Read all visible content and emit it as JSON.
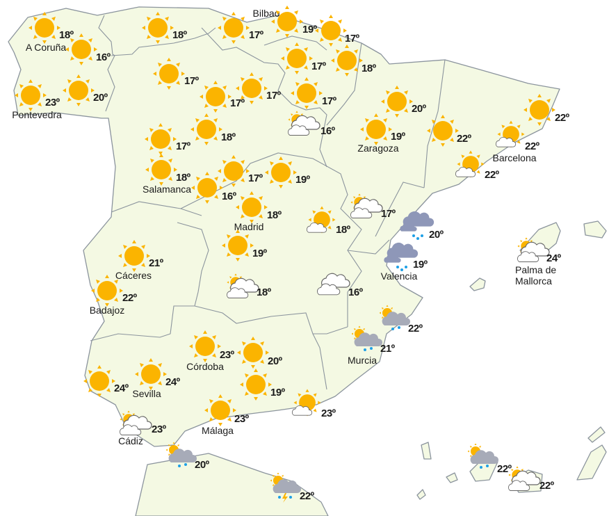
{
  "map": {
    "colors": {
      "land": "#f4f9e3",
      "border": "#8b949d",
      "sun": "#fbb400",
      "rain_cloud": "#8e97b8",
      "shower_cloud": "#a7abb8",
      "drop": "#1ea0e6"
    },
    "stations": [
      {
        "icon": "sun",
        "temp": "18º",
        "city": "A Coruña"
      },
      {
        "icon": "sun",
        "temp": "16º"
      },
      {
        "icon": "sun",
        "temp": "23º",
        "city": "Pontevedra"
      },
      {
        "icon": "sun",
        "temp": "20º"
      },
      {
        "icon": "sun",
        "temp": "18º"
      },
      {
        "icon": "sun",
        "temp": "17º",
        "city": "Bilbao"
      },
      {
        "icon": "sun",
        "temp": "19º"
      },
      {
        "icon": "sun",
        "temp": "17º"
      },
      {
        "icon": "sun",
        "temp": "17º"
      },
      {
        "icon": "sun",
        "temp": "18º"
      },
      {
        "icon": "sun",
        "temp": "17º"
      },
      {
        "icon": "sun",
        "temp": "17º"
      },
      {
        "icon": "sun",
        "temp": "17º"
      },
      {
        "icon": "sun",
        "temp": "17º"
      },
      {
        "icon": "sun-cloud",
        "temp": "16º"
      },
      {
        "icon": "sun",
        "temp": "20º"
      },
      {
        "icon": "sun",
        "temp": "19º",
        "city": "Zaragoza"
      },
      {
        "icon": "sun",
        "temp": "17º"
      },
      {
        "icon": "sun",
        "temp": "18º"
      },
      {
        "icon": "sun",
        "temp": "18º",
        "city": "Salamanca"
      },
      {
        "icon": "sun",
        "temp": "16º"
      },
      {
        "icon": "sun",
        "temp": "17º"
      },
      {
        "icon": "sun",
        "temp": "19º"
      },
      {
        "icon": "sun",
        "temp": "18º",
        "city": "Madrid"
      },
      {
        "icon": "sun-small-cloud",
        "temp": "18º"
      },
      {
        "icon": "sun-cloud",
        "temp": "17º"
      },
      {
        "icon": "rain",
        "temp": "20º"
      },
      {
        "icon": "rain",
        "temp": "19º",
        "city": "Valencia"
      },
      {
        "icon": "sun",
        "temp": "22º"
      },
      {
        "icon": "sun",
        "temp": "22º"
      },
      {
        "icon": "sun-small-cloud",
        "temp": "22º",
        "city": "Barcelona"
      },
      {
        "icon": "sun-small-cloud",
        "temp": "22º"
      },
      {
        "icon": "sun-cloud",
        "temp": "24º",
        "city": "Palma de Mallorca"
      },
      {
        "icon": "sun",
        "temp": "21º",
        "city": "Cáceres"
      },
      {
        "icon": "sun",
        "temp": "22º",
        "city": "Badajoz"
      },
      {
        "icon": "sun",
        "temp": "19º"
      },
      {
        "icon": "sun-cloud",
        "temp": "18º"
      },
      {
        "icon": "clouds",
        "temp": "16º"
      },
      {
        "icon": "sun-shower",
        "temp": "22º"
      },
      {
        "icon": "sun-shower",
        "temp": "21º",
        "city": "Murcia"
      },
      {
        "icon": "sun",
        "temp": "23º",
        "city": "Córdoba"
      },
      {
        "icon": "sun",
        "temp": "20º"
      },
      {
        "icon": "sun",
        "temp": "24º"
      },
      {
        "icon": "sun",
        "temp": "24º",
        "city": "Sevilla"
      },
      {
        "icon": "sun",
        "temp": "19º"
      },
      {
        "icon": "sun",
        "temp": "23º",
        "city": "Málaga"
      },
      {
        "icon": "sun-small-cloud",
        "temp": "23º"
      },
      {
        "icon": "sun-cloud",
        "temp": "23º",
        "city": "Cádiz"
      },
      {
        "icon": "sun-shower",
        "temp": "20º"
      },
      {
        "icon": "sun-storm",
        "temp": "22º"
      },
      {
        "icon": "sun-shower",
        "temp": "22º"
      },
      {
        "icon": "sun-cloud",
        "temp": "22º"
      }
    ]
  }
}
